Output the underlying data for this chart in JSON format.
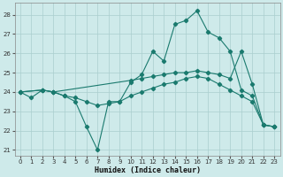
{
  "xlabel": "Humidex (Indice chaleur)",
  "background_color": "#ceeaea",
  "grid_color": "#aacece",
  "line_color": "#1a7a6e",
  "xlim": [
    -0.5,
    23.5
  ],
  "ylim": [
    20.7,
    28.6
  ],
  "yticks": [
    21,
    22,
    23,
    24,
    25,
    26,
    27,
    28
  ],
  "xticks": [
    0,
    1,
    2,
    3,
    4,
    5,
    6,
    7,
    8,
    9,
    10,
    11,
    12,
    13,
    14,
    15,
    16,
    17,
    18,
    19,
    20,
    21,
    22,
    23
  ],
  "series": [
    {
      "x": [
        0,
        1,
        2,
        3,
        4,
        5,
        6,
        7,
        8,
        9,
        10,
        11,
        12,
        13,
        14,
        15,
        16,
        17,
        18,
        19,
        20,
        21,
        22,
        23
      ],
      "y": [
        24.0,
        23.7,
        24.1,
        24.0,
        23.8,
        23.5,
        22.2,
        21.0,
        23.5,
        23.5,
        24.5,
        24.9,
        26.1,
        25.6,
        27.5,
        27.7,
        28.2,
        27.1,
        26.8,
        26.1,
        24.1,
        23.8,
        22.3,
        22.2
      ]
    },
    {
      "x": [
        0,
        2,
        3,
        10,
        11,
        12,
        13,
        14,
        15,
        16,
        17,
        18,
        19,
        20,
        21,
        22,
        23
      ],
      "y": [
        24.0,
        24.1,
        24.0,
        24.6,
        24.7,
        24.8,
        24.9,
        25.0,
        25.0,
        25.1,
        25.0,
        24.9,
        24.7,
        26.1,
        24.4,
        22.3,
        22.2
      ]
    },
    {
      "x": [
        0,
        2,
        3,
        4,
        5,
        6,
        7,
        8,
        9,
        10,
        11,
        12,
        13,
        14,
        15,
        16,
        17,
        18,
        19,
        20,
        21,
        22,
        23
      ],
      "y": [
        24.0,
        24.1,
        24.0,
        23.8,
        23.7,
        23.5,
        23.3,
        23.4,
        23.5,
        23.8,
        24.0,
        24.2,
        24.4,
        24.5,
        24.7,
        24.8,
        24.7,
        24.4,
        24.1,
        23.8,
        23.5,
        22.3,
        22.2
      ]
    }
  ]
}
